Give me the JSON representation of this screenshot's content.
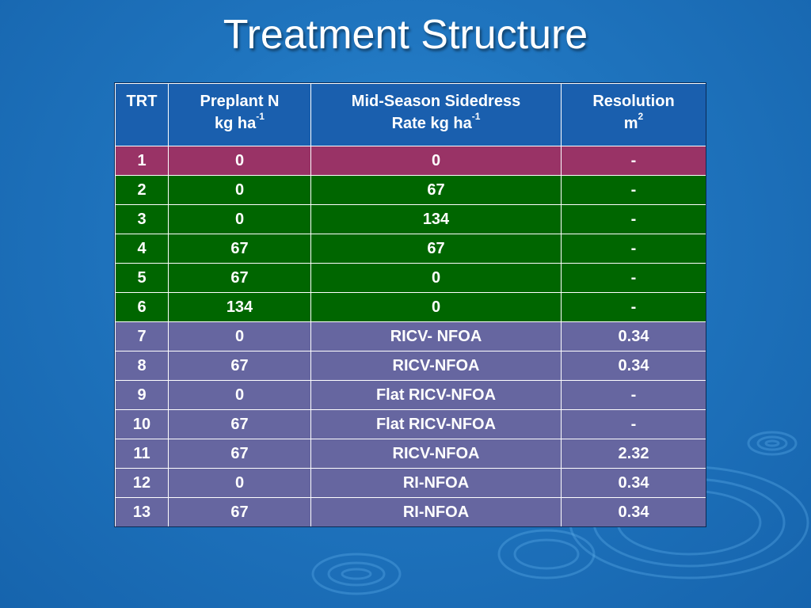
{
  "slide": {
    "title": "Treatment Structure"
  },
  "table": {
    "headers": {
      "trt": "TRT",
      "preplant_line1": "Preplant N",
      "preplant_line2": "kg ha",
      "preplant_sup": "-1",
      "midseason_line1": "Mid-Season Sidedress",
      "midseason_line2": "Rate kg ha",
      "midseason_sup": "-1",
      "resolution_line1": "Resolution",
      "resolution_line2": "m",
      "resolution_sup": "2"
    },
    "rows": [
      {
        "trt": "1",
        "preplant": "0",
        "midseason": "0",
        "resolution": "-",
        "color": "#993366"
      },
      {
        "trt": "2",
        "preplant": "0",
        "midseason": "67",
        "resolution": "-",
        "color": "#006600"
      },
      {
        "trt": "3",
        "preplant": "0",
        "midseason": "134",
        "resolution": "-",
        "color": "#006600"
      },
      {
        "trt": "4",
        "preplant": "67",
        "midseason": "67",
        "resolution": "-",
        "color": "#006600"
      },
      {
        "trt": "5",
        "preplant": "67",
        "midseason": "0",
        "resolution": "-",
        "color": "#006600"
      },
      {
        "trt": "6",
        "preplant": "134",
        "midseason": "0",
        "resolution": "-",
        "color": "#006600"
      },
      {
        "trt": "7",
        "preplant": "0",
        "midseason": "RICV- NFOA",
        "resolution": "0.34",
        "color": "#6666a0"
      },
      {
        "trt": "8",
        "preplant": "67",
        "midseason": "RICV-NFOA",
        "resolution": "0.34",
        "color": "#6666a0"
      },
      {
        "trt": "9",
        "preplant": "0",
        "midseason": "Flat RICV-NFOA",
        "resolution": "-",
        "color": "#6666a0"
      },
      {
        "trt": "10",
        "preplant": "67",
        "midseason": "Flat RICV-NFOA",
        "resolution": "-",
        "color": "#6666a0"
      },
      {
        "trt": "11",
        "preplant": "67",
        "midseason": "RICV-NFOA",
        "resolution": "2.32",
        "color": "#6666a0"
      },
      {
        "trt": "12",
        "preplant": "0",
        "midseason": "RI-NFOA",
        "resolution": "0.34",
        "color": "#6666a0"
      },
      {
        "trt": "13",
        "preplant": "67",
        "midseason": "RI-NFOA",
        "resolution": "0.34",
        "color": "#6666a0"
      }
    ]
  },
  "colors": {
    "header_bg": "#1a5fae",
    "background": "#1f74be",
    "magenta": "#993366",
    "green": "#006600",
    "purple": "#6666a0"
  }
}
